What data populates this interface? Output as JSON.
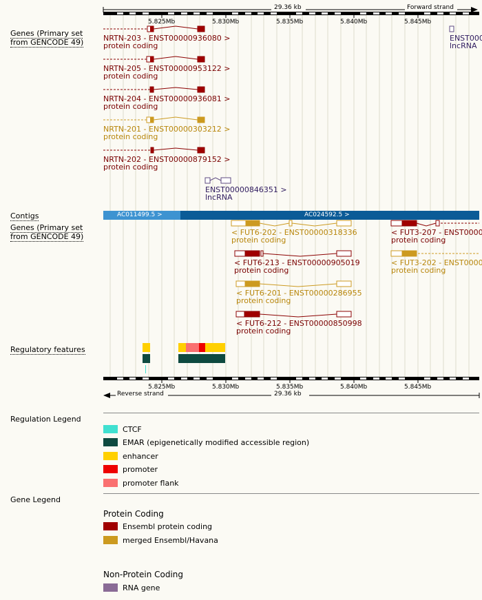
{
  "scale": {
    "span_top": "29.36 kb",
    "strand_top": "Forward strand",
    "span_bottom": "29.36 kb",
    "strand_bottom": "Reverse strand",
    "ticks": [
      "5.825Mb",
      "5.830Mb",
      "5.835Mb",
      "5.840Mb",
      "5.845Mb"
    ]
  },
  "tracks": {
    "genes_forward": "Genes (Primary set from GENCODE 49)",
    "contigs": "Contigs",
    "genes_reverse": "Genes (Primary set from GENCODE 49)",
    "regulatory": "Regulatory features"
  },
  "forward_genes": [
    {
      "name": "NRTN-203 - ENST00000936080 >",
      "biotype": "protein coding"
    },
    {
      "name": "NRTN-205 - ENST00000953122 >",
      "biotype": "protein coding"
    },
    {
      "name": "NRTN-204 - ENST00000936081 >",
      "biotype": "protein coding"
    },
    {
      "name": "NRTN-201 - ENST00000303212 >",
      "biotype": "protein coding"
    },
    {
      "name": "NRTN-202 - ENST00000879152 >",
      "biotype": "protein coding"
    },
    {
      "name": "ENST00000846351 >",
      "biotype": "lncRNA"
    },
    {
      "name": "ENST000",
      "biotype": "lncRNA"
    }
  ],
  "contigs": [
    "AC011499.5 >",
    "AC024592.5 >"
  ],
  "reverse_genes": [
    {
      "name": "< FUT6-202 - ENST00000318336",
      "biotype": "protein coding"
    },
    {
      "name": "< FUT6-213 - ENST00000905019",
      "biotype": "protein coding"
    },
    {
      "name": "< FUT6-201 - ENST00000286955",
      "biotype": "protein coding"
    },
    {
      "name": "< FUT6-212 - ENST00000850998",
      "biotype": "protein coding"
    },
    {
      "name": "< FUT3-207 - ENST00000",
      "biotype": "protein coding"
    },
    {
      "name": "< FUT3-202 - ENST00000",
      "biotype": "protein coding"
    }
  ],
  "regulation_legend": {
    "title": "Regulation Legend",
    "items": [
      {
        "label": "CTCF",
        "color": "#40e0d0"
      },
      {
        "label": "EMAR (epigenetically modified accessible region)",
        "color": "#0e4a40"
      },
      {
        "label": "enhancer",
        "color": "#ffd000"
      },
      {
        "label": "promoter",
        "color": "#ee0000"
      },
      {
        "label": "promoter flank",
        "color": "#fa7070"
      }
    ]
  },
  "gene_legend": {
    "title": "Gene Legend",
    "protein_coding_title": "Protein Coding",
    "protein_items": [
      {
        "label": "Ensembl protein coding",
        "color": "#a00000"
      },
      {
        "label": "merged Ensembl/Havana",
        "color": "#cc9a20"
      }
    ],
    "nonprotein_title": "Non-Protein Coding",
    "nonprotein_items": [
      {
        "label": "RNA gene",
        "color": "#8a6b96"
      }
    ]
  }
}
